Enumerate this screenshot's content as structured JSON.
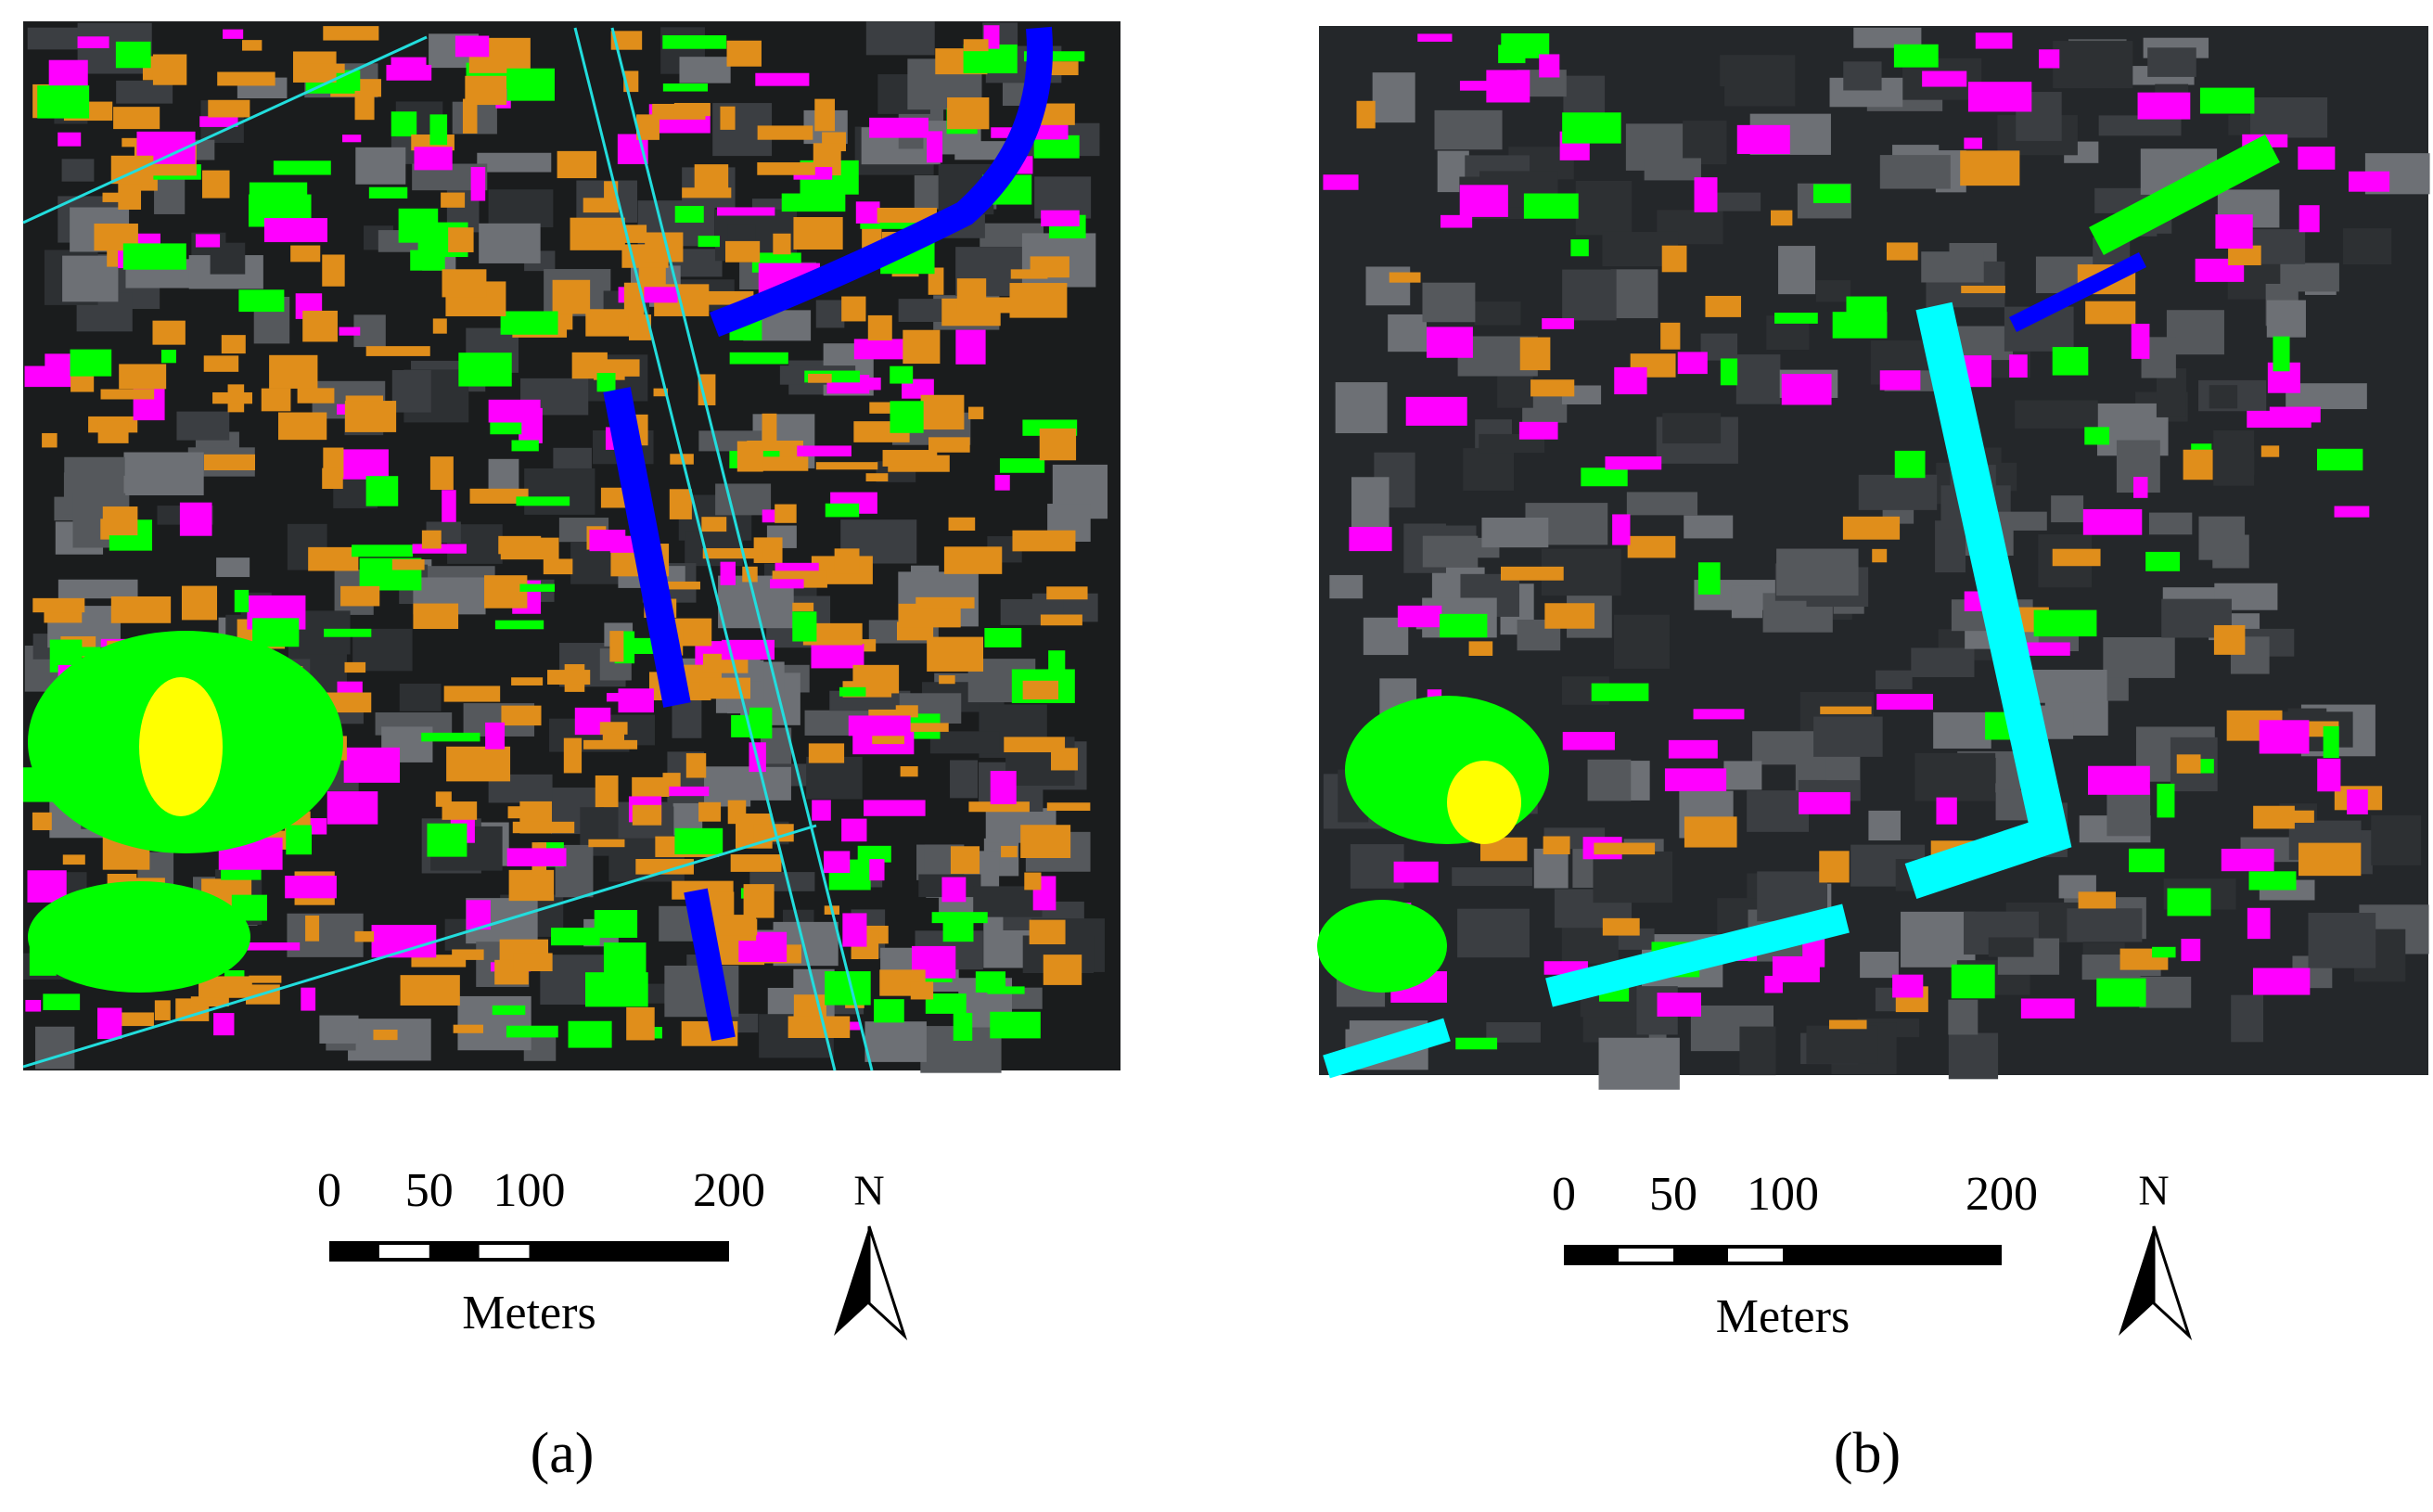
{
  "panels": [
    {
      "label": "(a)",
      "scale_ticks": [
        0,
        50,
        100,
        200
      ],
      "scale_unit": "Meters",
      "north": "N"
    },
    {
      "label": "(b)",
      "scale_ticks": [
        0,
        50,
        100,
        200
      ],
      "scale_unit": "Meters",
      "north": "N"
    }
  ]
}
